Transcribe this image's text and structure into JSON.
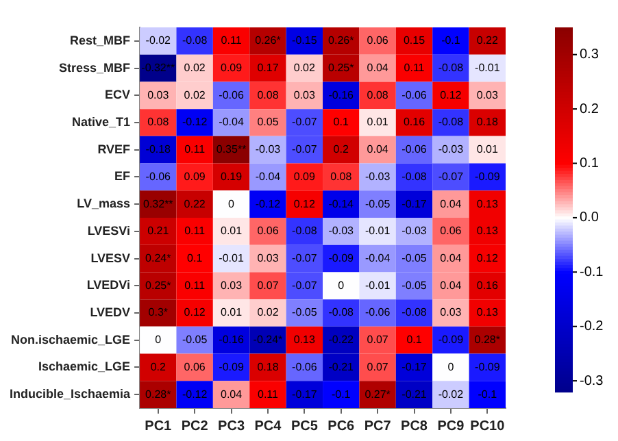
{
  "chart_data": {
    "type": "heatmap",
    "categories": [
      "PC1",
      "PC2",
      "PC3",
      "PC4",
      "PC5",
      "PC6",
      "PC7",
      "PC8",
      "PC9",
      "PC10"
    ],
    "y_categories": [
      "Rest_MBF",
      "Stress_MBF",
      "ECV",
      "Native_T1",
      "RVEF",
      "EF",
      "LV_mass",
      "LVESVi",
      "LVESV",
      "LVEDVi",
      "LVEDV",
      "Non.ischaemic_LGE",
      "Ischaemic_LGE",
      "Inducible_Ischaemia"
    ],
    "cells": [
      [
        -0.02,
        -0.08,
        0.11,
        0.26,
        -0.15,
        0.26,
        0.06,
        0.15,
        -0.1,
        0.22
      ],
      [
        -0.32,
        0.02,
        0.09,
        0.17,
        0.02,
        0.25,
        0.04,
        0.11,
        -0.08,
        -0.01
      ],
      [
        0.03,
        0.02,
        -0.06,
        0.08,
        0.03,
        -0.16,
        0.08,
        -0.06,
        0.12,
        0.03
      ],
      [
        0.08,
        -0.12,
        -0.04,
        0.05,
        -0.07,
        0.1,
        0.01,
        0.16,
        -0.08,
        0.18
      ],
      [
        -0.18,
        0.11,
        0.35,
        -0.03,
        -0.07,
        0.2,
        0.04,
        -0.06,
        -0.03,
        0.01
      ],
      [
        -0.06,
        0.09,
        0.19,
        -0.04,
        0.09,
        0.08,
        -0.03,
        -0.08,
        -0.07,
        -0.09
      ],
      [
        0.32,
        0.22,
        0,
        -0.12,
        0.12,
        -0.14,
        -0.05,
        -0.17,
        0.04,
        0.13
      ],
      [
        0.21,
        0.11,
        0.01,
        0.06,
        -0.08,
        -0.03,
        -0.01,
        -0.03,
        0.06,
        0.13
      ],
      [
        0.24,
        0.1,
        -0.01,
        0.03,
        -0.07,
        -0.09,
        -0.04,
        -0.05,
        0.04,
        0.12
      ],
      [
        0.25,
        0.11,
        0.03,
        0.07,
        -0.07,
        0,
        -0.01,
        -0.05,
        0.04,
        0.16
      ],
      [
        0.3,
        0.12,
        0.01,
        0.02,
        -0.05,
        -0.08,
        -0.06,
        -0.08,
        0.03,
        0.13
      ],
      [
        0,
        -0.05,
        -0.16,
        -0.24,
        0.13,
        -0.22,
        0.07,
        0.1,
        -0.09,
        0.28
      ],
      [
        0.2,
        0.06,
        -0.09,
        0.18,
        -0.06,
        -0.21,
        0.07,
        -0.17,
        0,
        -0.09
      ],
      [
        0.28,
        -0.12,
        0.04,
        0.11,
        -0.17,
        -0.1,
        0.27,
        -0.21,
        -0.02,
        -0.1
      ]
    ],
    "cell_labels": [
      [
        "-0.02",
        "-0.08",
        "0.11",
        "0.26*",
        "-0.15",
        "0.26*",
        "0.06",
        "0.15",
        "-0.1",
        "0.22"
      ],
      [
        "-0.32**",
        "0.02",
        "0.09",
        "0.17",
        "0.02",
        "0.25*",
        "0.04",
        "0.11",
        "-0.08",
        "-0.01"
      ],
      [
        "0.03",
        "0.02",
        "-0.06",
        "0.08",
        "0.03",
        "-0.16",
        "0.08",
        "-0.06",
        "0.12",
        "0.03"
      ],
      [
        "0.08",
        "-0.12",
        "-0.04",
        "0.05",
        "-0.07",
        "0.1",
        "0.01",
        "0.16",
        "-0.08",
        "0.18"
      ],
      [
        "-0.18",
        "0.11",
        "0.35**",
        "-0.03",
        "-0.07",
        "0.2",
        "0.04",
        "-0.06",
        "-0.03",
        "0.01"
      ],
      [
        "-0.06",
        "0.09",
        "0.19",
        "-0.04",
        "0.09",
        "0.08",
        "-0.03",
        "-0.08",
        "-0.07",
        "-0.09"
      ],
      [
        "0.32**",
        "0.22",
        "0",
        "-0.12",
        "0.12",
        "-0.14",
        "-0.05",
        "-0.17",
        "0.04",
        "0.13"
      ],
      [
        "0.21",
        "0.11",
        "0.01",
        "0.06",
        "-0.08",
        "-0.03",
        "-0.01",
        "-0.03",
        "0.06",
        "0.13"
      ],
      [
        "0.24*",
        "0.1",
        "-0.01",
        "0.03",
        "-0.07",
        "-0.09",
        "-0.04",
        "-0.05",
        "0.04",
        "0.12"
      ],
      [
        "0.25*",
        "0.11",
        "0.03",
        "0.07",
        "-0.07",
        "0",
        "-0.01",
        "-0.05",
        "0.04",
        "0.16"
      ],
      [
        "0.3*",
        "0.12",
        "0.01",
        "0.02",
        "-0.05",
        "-0.08",
        "-0.06",
        "-0.08",
        "0.03",
        "0.13"
      ],
      [
        "0",
        "-0.05",
        "-0.16",
        "-0.24*",
        "0.13",
        "-0.22",
        "0.07",
        "0.1",
        "-0.09",
        "0.28*"
      ],
      [
        "0.2",
        "0.06",
        "-0.09",
        "0.18",
        "-0.06",
        "-0.21",
        "0.07",
        "-0.17",
        "0",
        "-0.09"
      ],
      [
        "0.28*",
        "-0.12",
        "0.04",
        "0.11",
        "-0.17",
        "-0.1",
        "0.27*",
        "-0.21",
        "-0.02",
        "-0.1"
      ]
    ],
    "clim": [
      -0.32,
      0.35
    ],
    "cticks": [
      {
        "value": -0.3,
        "label": "-0.3"
      },
      {
        "value": -0.2,
        "label": "-0.2"
      },
      {
        "value": -0.1,
        "label": "-0.1"
      },
      {
        "value": 0,
        "label": "0.0"
      },
      {
        "value": 0.1,
        "label": "0.1"
      },
      {
        "value": 0.2,
        "label": "0.2"
      },
      {
        "value": 0.3,
        "label": "0.3"
      }
    ]
  }
}
